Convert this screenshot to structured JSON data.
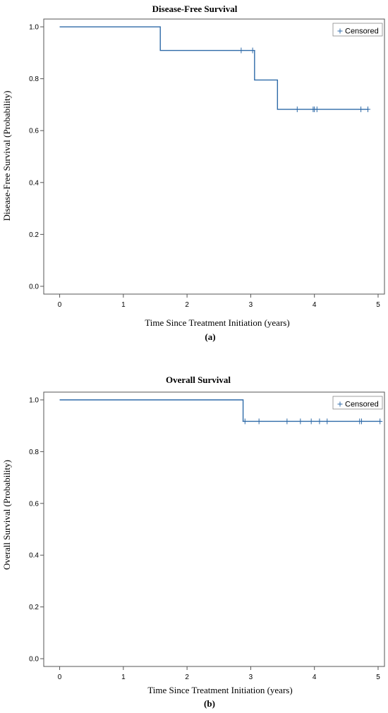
{
  "chart_data": [
    {
      "type": "line",
      "panel": "(a)",
      "title": "Disease-Free Survival",
      "xlabel": "Time Since Treatment Initiation (years)",
      "ylabel": "Disease-Free Survival (Probability)",
      "xlim": [
        -0.25,
        5.1
      ],
      "ylim": [
        -0.03,
        1.03
      ],
      "xticks": [
        "0",
        "1",
        "2",
        "3",
        "4",
        "5"
      ],
      "yticks": [
        "0.0",
        "0.2",
        "0.4",
        "0.6",
        "0.8",
        "1.0"
      ],
      "grid": false,
      "legend": {
        "position": "top-right",
        "label": "Censored"
      },
      "color": "#2e6aa8",
      "series": [
        {
          "steps": [
            [
              0,
              1.0
            ],
            [
              1.58,
              0.909
            ],
            [
              3.06,
              0.795
            ],
            [
              3.42,
              0.682
            ],
            [
              4.85,
              0.682
            ]
          ],
          "censored": [
            [
              2.85,
              0.909
            ],
            [
              3.03,
              0.909
            ],
            [
              3.73,
              0.682
            ],
            [
              3.98,
              0.682
            ],
            [
              4.0,
              0.682
            ],
            [
              4.04,
              0.682
            ],
            [
              4.73,
              0.682
            ],
            [
              4.84,
              0.682
            ]
          ]
        }
      ]
    },
    {
      "type": "line",
      "panel": "(b)",
      "title": "Overall Survival",
      "xlabel": "Time Since Treatment Initiation (years)",
      "ylabel": "Overall  Survival (Probability)",
      "xlim": [
        -0.25,
        5.1
      ],
      "ylim": [
        -0.03,
        1.03
      ],
      "xticks": [
        "0",
        "1",
        "2",
        "3",
        "4",
        "5"
      ],
      "yticks": [
        "0.0",
        "0.2",
        "0.4",
        "0.6",
        "0.8",
        "1.0"
      ],
      "grid": false,
      "legend": {
        "position": "top-right",
        "label": "Censored"
      },
      "color": "#2e6aa8",
      "series": [
        {
          "steps": [
            [
              0,
              1.0
            ],
            [
              2.88,
              0.917
            ],
            [
              5.04,
              0.917
            ]
          ],
          "censored": [
            [
              2.91,
              0.917
            ],
            [
              3.13,
              0.917
            ],
            [
              3.57,
              0.917
            ],
            [
              3.78,
              0.917
            ],
            [
              3.95,
              0.917
            ],
            [
              4.08,
              0.917
            ],
            [
              4.2,
              0.917
            ],
            [
              4.71,
              0.917
            ],
            [
              4.74,
              0.917
            ],
            [
              5.03,
              0.917
            ]
          ]
        }
      ]
    }
  ]
}
